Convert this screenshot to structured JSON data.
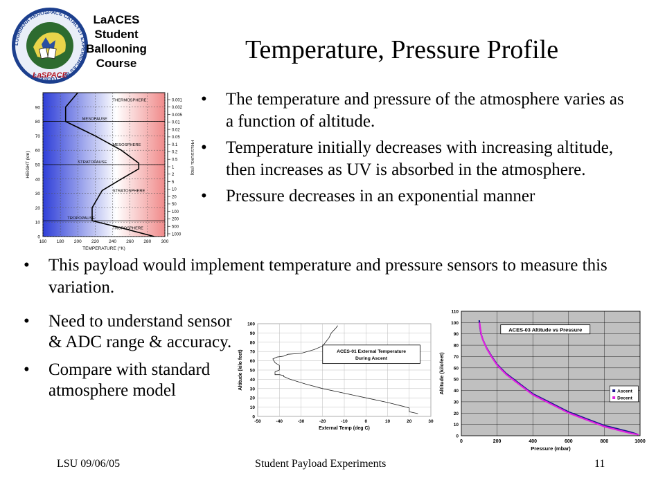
{
  "logo": {
    "ring_text": "LOUISIANA AEROSPACE CATALYST EXPERIENCES for STUDENTS",
    "badge_text": "LaSPACE",
    "lines": [
      "LaACES",
      "Student",
      "Ballooning",
      "Course"
    ]
  },
  "title": "Temperature, Pressure Profile",
  "top_bullets": [
    "The temperature and pressure of the atmosphere varies as a function of altitude.",
    "Temperature initially decreases with increasing altitude, then increases as UV is absorbed in the atmosphere.",
    "Pressure decreases in an exponential manner"
  ],
  "mid_bullet": "This payload would implement temperature and pressure sensors to measure this variation.",
  "side_bullets": [
    "Need to understand sensor & ADC range & accuracy.",
    "Compare with standard atmosphere model"
  ],
  "footer": {
    "left": "LSU 09/06/05",
    "center": "Student Payload Experiments",
    "right": "11"
  },
  "chart_data": [
    {
      "type": "line",
      "title": "",
      "xlabel": "TEMPERATURE (°K)",
      "ylabel": "HEIGHT (km)",
      "y2label": "PRESSURE (mb)",
      "xlim": [
        160,
        300
      ],
      "ylim": [
        0,
        100
      ],
      "x_ticks": [
        160,
        180,
        200,
        220,
        240,
        260,
        280,
        300
      ],
      "y_ticks": [
        0,
        10,
        20,
        30,
        40,
        50,
        60,
        70,
        80,
        90
      ],
      "pressure_ticks": [
        "0.001",
        "0.002",
        "0.005",
        "0.01",
        "0.02",
        "0.05",
        "0.1",
        "0.2",
        "0.5",
        "1",
        "2",
        "5",
        "10",
        "20",
        "50",
        "100",
        "200",
        "500",
        "1000"
      ],
      "layers": [
        "THERMOSPHERE",
        "MESOPAUSE",
        "MESOSPHERE",
        "STRATOPAUSE",
        "STRATOSPHERE",
        "TROPOPAUSE",
        "TROPOSPHERE"
      ],
      "series": [
        {
          "x": [
            288,
            250,
            216.5,
            216.5,
            228,
            250,
            270,
            270,
            250,
            220,
            186,
            186,
            200
          ],
          "y": [
            0,
            6,
            11,
            20,
            32,
            40,
            47,
            51,
            60,
            70,
            80,
            90,
            100
          ]
        }
      ]
    },
    {
      "type": "line",
      "title": "ACES-01 External Temperature During Ascent",
      "xlabel": "External Temp (deg C)",
      "ylabel": "Altitude (kilo feet)",
      "xlim": [
        -50,
        30
      ],
      "ylim": [
        0,
        100
      ],
      "x_ticks": [
        -50,
        -40,
        -30,
        -20,
        -10,
        0,
        10,
        20,
        30
      ],
      "y_ticks": [
        0,
        10,
        20,
        30,
        40,
        50,
        60,
        70,
        80,
        90,
        100
      ],
      "series": [
        {
          "x": [
            24,
            20,
            20,
            17,
            10,
            0,
            -10,
            -20,
            -28,
            -35,
            -38,
            -38,
            -40,
            -42,
            -42,
            -40,
            -40,
            -42,
            -43,
            -41,
            -38,
            -36,
            -30,
            -24,
            -20,
            -18,
            -17,
            -16,
            -14,
            -13
          ],
          "y": [
            3,
            5,
            9,
            11,
            15,
            20,
            25,
            30,
            35,
            40,
            43,
            44,
            45,
            45,
            48,
            50,
            55,
            58,
            62,
            64,
            65,
            67,
            68,
            72,
            76,
            82,
            85,
            90,
            95,
            98
          ]
        }
      ]
    },
    {
      "type": "line",
      "title": "ACES-03 Altitude vs Pressure",
      "xlabel": "Pressure (mbar)",
      "ylabel": "Altitude (kilofeet)",
      "xlim": [
        0,
        1000
      ],
      "ylim": [
        0,
        110
      ],
      "x_ticks": [
        0,
        200,
        400,
        600,
        800,
        1000
      ],
      "y_ticks": [
        0,
        10,
        20,
        30,
        40,
        50,
        60,
        70,
        80,
        90,
        100,
        110
      ],
      "series": [
        {
          "name": "Ascent",
          "color": "#1a1a8c",
          "x": [
            100,
            105,
            110,
            120,
            140,
            170,
            200,
            250,
            300,
            350,
            400,
            450,
            500,
            550,
            600,
            650,
            700,
            750,
            800,
            850,
            900,
            950,
            990
          ],
          "y": [
            102,
            95,
            90,
            85,
            78,
            70,
            63,
            55,
            49,
            43,
            37,
            33,
            29,
            25,
            21,
            18,
            15,
            12,
            9,
            7,
            5,
            3,
            1
          ]
        },
        {
          "name": "Decent",
          "color": "#e020e0",
          "x": [
            102,
            107,
            112,
            122,
            142,
            172,
            202,
            252,
            302,
            352,
            402,
            452,
            502,
            552,
            602,
            652,
            702,
            752,
            802,
            852,
            902,
            952,
            992
          ],
          "y": [
            100,
            94,
            89,
            84,
            77,
            69,
            62,
            54,
            48,
            42,
            36,
            32,
            28,
            24,
            20,
            17,
            14,
            11,
            8,
            6,
            4,
            2,
            1
          ]
        }
      ]
    }
  ]
}
